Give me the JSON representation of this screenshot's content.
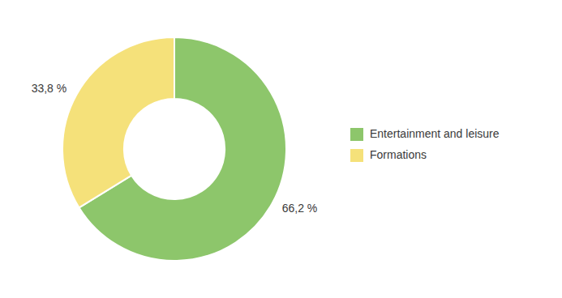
{
  "chart_data": {
    "type": "donut",
    "categories": [
      "Entertainment and leisure",
      "Formations"
    ],
    "values": [
      66.2,
      33.8
    ],
    "value_labels": [
      "66,2 %",
      "33,8 %"
    ],
    "colors": [
      "#8dc66b",
      "#f5e17a"
    ],
    "data_labels": true,
    "legend": "right"
  }
}
